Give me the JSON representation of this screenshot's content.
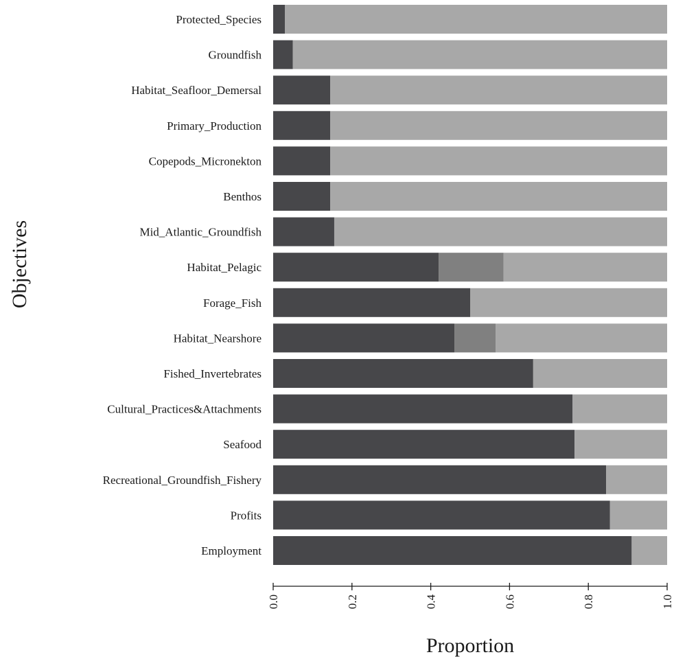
{
  "chart_data": {
    "type": "bar",
    "orientation": "horizontal",
    "stacked": true,
    "title": "",
    "xlabel": "Proportion",
    "ylabel": "Objectives",
    "xlim": [
      0,
      1
    ],
    "xticks": [
      "0.0",
      "0.2",
      "0.4",
      "0.6",
      "0.8",
      "1.0"
    ],
    "grid": false,
    "categories": [
      "Protected_Species",
      "Groundfish",
      "Habitat_Seafloor_Demersal",
      "Primary_Production",
      "Copepods_Micronekton",
      "Benthos",
      "Mid_Atlantic_Groundfish",
      "Habitat_Pelagic",
      "Forage_Fish",
      "Habitat_Nearshore",
      "Fished_Invertebrates",
      "Cultural_Practices&Attachments",
      "Seafood",
      "Recreational_Groundfish_Fishery",
      "Profits",
      "Employment"
    ],
    "series": [
      {
        "color": "#47474a",
        "values": [
          0.03,
          0.05,
          0.145,
          0.145,
          0.145,
          0.145,
          0.155,
          0.42,
          0.5,
          0.46,
          0.66,
          0.76,
          0.765,
          0.845,
          0.855,
          0.91
        ]
      },
      {
        "color": "#808080",
        "values": [
          0,
          0,
          0,
          0,
          0,
          0,
          0,
          0.165,
          0,
          0.105,
          0,
          0,
          0,
          0,
          0,
          0
        ]
      },
      {
        "color": "#a8a8a8",
        "values": [
          0.97,
          0.95,
          0.855,
          0.855,
          0.855,
          0.855,
          0.845,
          0.415,
          0.5,
          0.435,
          0.34,
          0.24,
          0.235,
          0.155,
          0.145,
          0.09
        ]
      }
    ]
  }
}
